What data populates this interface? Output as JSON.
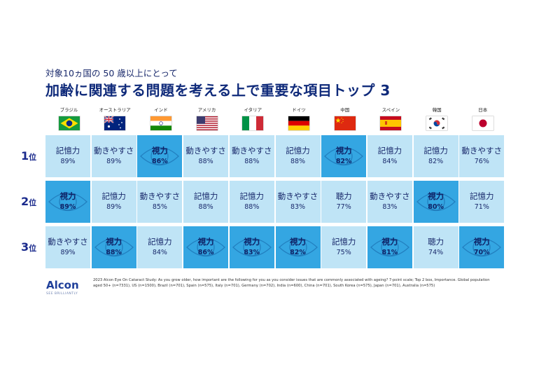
{
  "subtitle": "対象10ヵ国の 50 歳以上にとって",
  "title": "加齢に関連する問題を考える上で重要な項目トップ 3",
  "colors": {
    "highlight": "#34a6e2",
    "base": "#bfe4f6",
    "text": "#1a2a6c"
  },
  "chart_data": {
    "type": "table",
    "columns": [
      {
        "country": "ブラジル",
        "flag": "brazil-flag"
      },
      {
        "country": "オーストラリア",
        "flag": "australia-flag"
      },
      {
        "country": "インド",
        "flag": "india-flag"
      },
      {
        "country": "アメリカ",
        "flag": "usa-flag"
      },
      {
        "country": "イタリア",
        "flag": "italy-flag"
      },
      {
        "country": "ドイツ",
        "flag": "germany-flag"
      },
      {
        "country": "中国",
        "flag": "china-flag"
      },
      {
        "country": "スペイン",
        "flag": "spain-flag"
      },
      {
        "country": "韓国",
        "flag": "korea-flag"
      },
      {
        "country": "日本",
        "flag": "japan-flag"
      }
    ],
    "rows": [
      {
        "rank": "1",
        "suffix": "位",
        "cells": [
          {
            "label": "記憶力",
            "value": "89%",
            "highlight": false
          },
          {
            "label": "動きやすさ",
            "value": "89%",
            "highlight": false
          },
          {
            "label": "視力",
            "value": "86%",
            "highlight": true
          },
          {
            "label": "動きやすさ",
            "value": "88%",
            "highlight": false
          },
          {
            "label": "動きやすさ",
            "value": "88%",
            "highlight": false
          },
          {
            "label": "記憶力",
            "value": "88%",
            "highlight": false
          },
          {
            "label": "視力",
            "value": "82%",
            "highlight": true
          },
          {
            "label": "記憶力",
            "value": "84%",
            "highlight": false
          },
          {
            "label": "記憶力",
            "value": "82%",
            "highlight": false
          },
          {
            "label": "動きやすさ",
            "value": "76%",
            "highlight": false
          }
        ]
      },
      {
        "rank": "2",
        "suffix": "位",
        "cells": [
          {
            "label": "視力",
            "value": "89%",
            "highlight": true
          },
          {
            "label": "記憶力",
            "value": "89%",
            "highlight": false
          },
          {
            "label": "動きやすさ",
            "value": "85%",
            "highlight": false
          },
          {
            "label": "記憶力",
            "value": "88%",
            "highlight": false
          },
          {
            "label": "記憶力",
            "value": "88%",
            "highlight": false
          },
          {
            "label": "動きやすさ",
            "value": "83%",
            "highlight": false
          },
          {
            "label": "聴力",
            "value": "77%",
            "highlight": false
          },
          {
            "label": "動きやすさ",
            "value": "83%",
            "highlight": false
          },
          {
            "label": "視力",
            "value": "80%",
            "highlight": true
          },
          {
            "label": "記憶力",
            "value": "71%",
            "highlight": false
          }
        ]
      },
      {
        "rank": "3",
        "suffix": "位",
        "cells": [
          {
            "label": "動きやすさ",
            "value": "89%",
            "highlight": false
          },
          {
            "label": "視力",
            "value": "88%",
            "highlight": true
          },
          {
            "label": "記憶力",
            "value": "84%",
            "highlight": false
          },
          {
            "label": "視力",
            "value": "86%",
            "highlight": true
          },
          {
            "label": "視力",
            "value": "83%",
            "highlight": true
          },
          {
            "label": "視力",
            "value": "82%",
            "highlight": true
          },
          {
            "label": "記憶力",
            "value": "75%",
            "highlight": false
          },
          {
            "label": "視力",
            "value": "81%",
            "highlight": true
          },
          {
            "label": "聴力",
            "value": "74%",
            "highlight": false
          },
          {
            "label": "視力",
            "value": "70%",
            "highlight": true
          }
        ]
      }
    ]
  },
  "footer": {
    "logo": "Alcon",
    "tagline": "SEE BRILLIANTLY",
    "source": "2023 Alcon Eye On Cataract Study: As you grow older, how important are the following for you as you consider issues that are commonly associated with ageing? 7-point scale; Top 2 box, Importance. Global population aged 50+ (n=7331), US (n=1500), Brazil (n=701), Spain (n=575), Italy (n=701), Germany (n=702), India (n=600), China (n=701), South Korea (n=575), Japan (n=701), Australia (n=575)"
  }
}
